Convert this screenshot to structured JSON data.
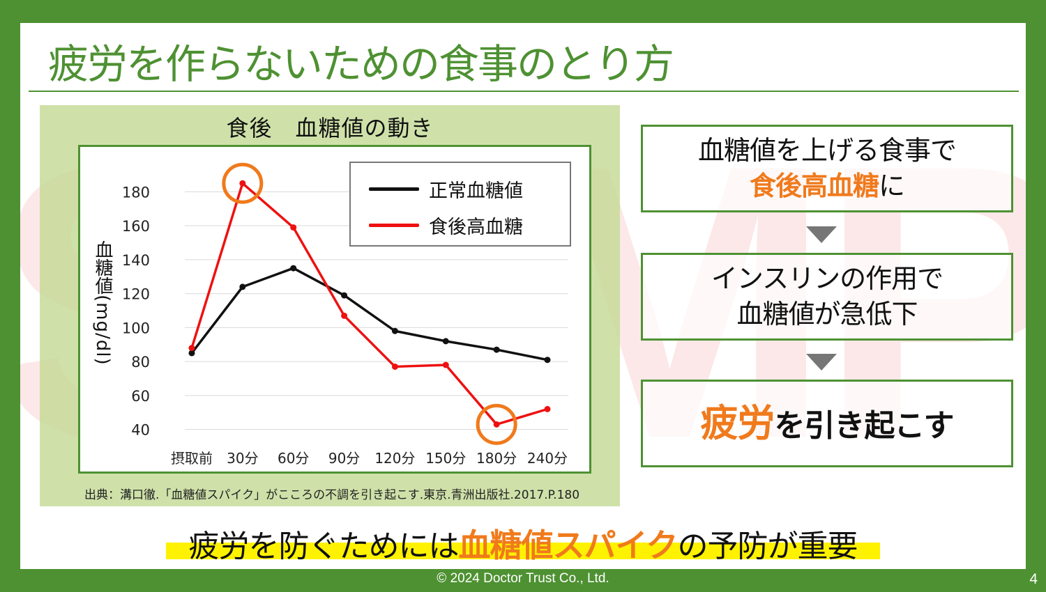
{
  "slide": {
    "title": "疲労を作らないための食事のとり方",
    "watermark": "SAMPLE",
    "footer": "© 2024 Doctor Trust Co., Ltd.",
    "page_number": "4"
  },
  "chart_panel": {
    "source": "出典：溝口徹.「血糖値スパイク」がこころの不調を引き起こす.東京.青洲出版社.2017.P.180"
  },
  "flow": {
    "step1_line1": "血糖値を上げる食事で",
    "step1_highlight": "食後高血糖",
    "step1_tail": "に",
    "step2_line1": "インスリンの作用で",
    "step2_line2": "血糖値が急低下",
    "step3_highlight": "疲労",
    "step3_tail": "を引き起こす"
  },
  "conclusion": {
    "prefix": "疲労を防ぐためには",
    "highlight": "血糖値スパイク",
    "suffix": "の予防が重要"
  },
  "colors": {
    "brand_green": "#4e9132",
    "accent_orange": "#f07a1c",
    "normal_series": "#111111",
    "high_series": "#ee1111",
    "highlight_yellow": "#fff200"
  },
  "chart_data": {
    "type": "line",
    "title": "食後　血糖値の動き",
    "ylabel_main": "血糖値",
    "ylabel_unit": "(mg/dl)",
    "categories": [
      "摂取前",
      "30分",
      "60分",
      "90分",
      "120分",
      "150分",
      "180分",
      "240分"
    ],
    "y_ticks": [
      40,
      60,
      80,
      100,
      120,
      140,
      160,
      180
    ],
    "ylim": [
      30,
      190
    ],
    "grid": true,
    "legend_position": "top-right",
    "series": [
      {
        "name": "正常血糖値",
        "color": "#111111",
        "values": [
          85,
          124,
          135,
          119,
          98,
          92,
          87,
          81
        ]
      },
      {
        "name": "食後高血糖",
        "color": "#ee1111",
        "values": [
          88,
          185,
          159,
          107,
          77,
          78,
          43,
          52
        ]
      }
    ],
    "highlighted_points": [
      {
        "series": "食後高血糖",
        "category": "30分"
      },
      {
        "series": "食後高血糖",
        "category": "180分"
      }
    ]
  }
}
